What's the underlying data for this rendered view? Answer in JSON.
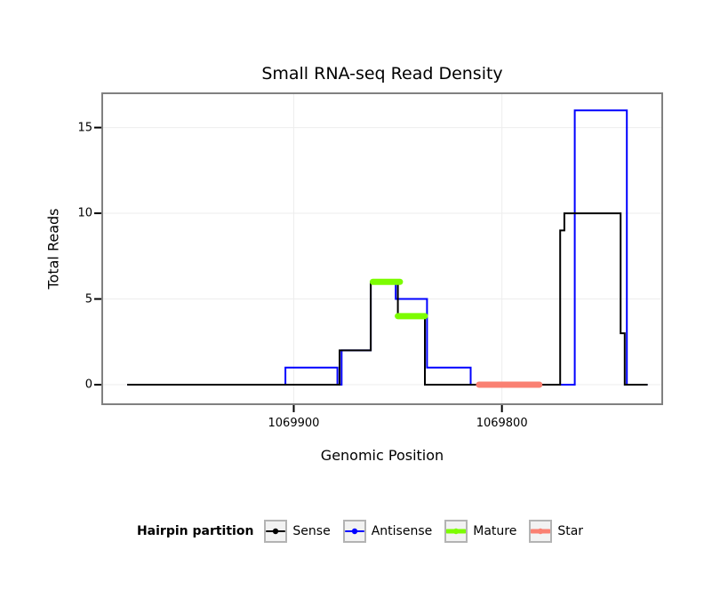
{
  "chart_data": {
    "type": "line",
    "title": "Small RNA-seq Read Density",
    "xlabel": "Genomic Position",
    "ylabel": "Total Reads",
    "x_axis_reversed": true,
    "grid": true,
    "x_range_left_to_right": [
      1069992,
      1069723
    ],
    "y_range": [
      -1.14,
      17
    ],
    "x_ticks": [
      {
        "value": 1069900,
        "label": "1069900"
      },
      {
        "value": 1069800,
        "label": "1069800"
      }
    ],
    "y_ticks": [
      {
        "value": 0,
        "label": "0"
      },
      {
        "value": 5,
        "label": "5"
      },
      {
        "value": 10,
        "label": "10"
      },
      {
        "value": 15,
        "label": "15"
      }
    ],
    "colors": {
      "sense": "#000000",
      "antisense": "#0000FF",
      "mature": "#7CFC00",
      "star": "#FA8072",
      "panel_border": "#808080",
      "grid": "#EDEDED",
      "tick": "#000000"
    },
    "series": [
      {
        "name": "Antisense",
        "color": "#0000FF",
        "width": 2,
        "points": [
          [
            1069980,
            0
          ],
          [
            1069904,
            0
          ],
          [
            1069904,
            1
          ],
          [
            1069879,
            1
          ],
          [
            1069879,
            0
          ],
          [
            1069877,
            0
          ],
          [
            1069877,
            2
          ],
          [
            1069863,
            2
          ],
          [
            1069863,
            6
          ],
          [
            1069851,
            6
          ],
          [
            1069851,
            5
          ],
          [
            1069836,
            5
          ],
          [
            1069836,
            1
          ],
          [
            1069815,
            1
          ],
          [
            1069815,
            0
          ],
          [
            1069765,
            0
          ],
          [
            1069765,
            16
          ],
          [
            1069740,
            16
          ],
          [
            1069740,
            0
          ],
          [
            1069730,
            0
          ]
        ]
      },
      {
        "name": "Sense",
        "color": "#000000",
        "width": 2,
        "points": [
          [
            1069980,
            0
          ],
          [
            1069878,
            0
          ],
          [
            1069878,
            2
          ],
          [
            1069863,
            2
          ],
          [
            1069863,
            6
          ],
          [
            1069850,
            6
          ],
          [
            1069850,
            4
          ],
          [
            1069837,
            4
          ],
          [
            1069837,
            0
          ],
          [
            1069772,
            0
          ],
          [
            1069772,
            9
          ],
          [
            1069770,
            9
          ],
          [
            1069770,
            10
          ],
          [
            1069743,
            10
          ],
          [
            1069743,
            3
          ],
          [
            1069741,
            3
          ],
          [
            1069741,
            0
          ],
          [
            1069730,
            0
          ]
        ]
      }
    ],
    "segments": [
      {
        "name": "Mature",
        "color": "#7CFC00",
        "width": 7,
        "y": 6,
        "x_from": 1069862,
        "x_to": 1069849
      },
      {
        "name": "Mature",
        "color": "#7CFC00",
        "width": 7,
        "y": 4,
        "x_from": 1069850,
        "x_to": 1069837
      },
      {
        "name": "Star",
        "color": "#FA8072",
        "width": 7,
        "y": 0,
        "x_from": 1069811,
        "x_to": 1069782
      }
    ],
    "legend": {
      "title": "Hairpin partition",
      "items": [
        {
          "label": "Sense",
          "color": "#000000",
          "line_width": 2
        },
        {
          "label": "Antisense",
          "color": "#0000FF",
          "line_width": 2
        },
        {
          "label": "Mature",
          "color": "#7CFC00",
          "line_width": 5
        },
        {
          "label": "Star",
          "color": "#FA8072",
          "line_width": 5
        }
      ]
    }
  }
}
